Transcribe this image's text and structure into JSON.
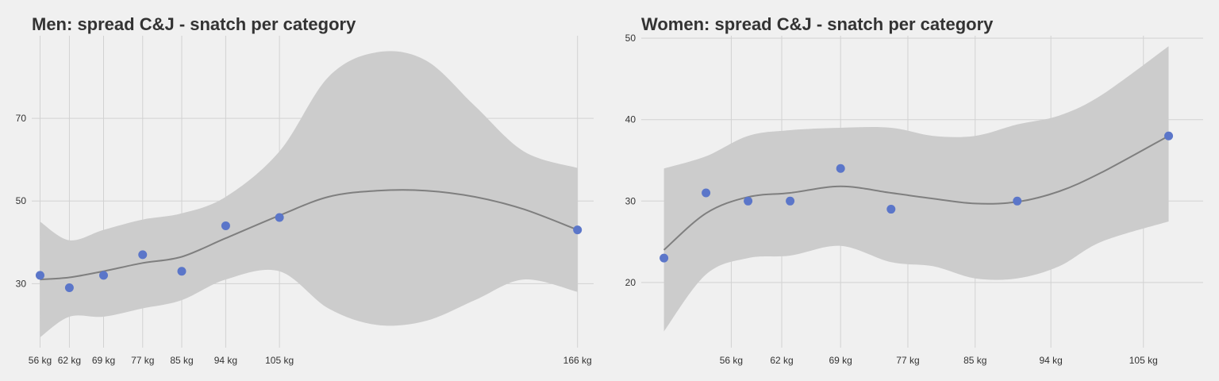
{
  "colors": {
    "background": "#f0f0f0",
    "grid": "#d2d2d2",
    "band": "#cccccc",
    "smooth_line": "#7f7f7f",
    "point": "#5b76c9",
    "text": "#333333"
  },
  "chart_data": [
    {
      "type": "scatter",
      "title": "Men: spread C&J - snatch per category",
      "xlabel": "",
      "ylabel": "",
      "xlim": [
        54.3,
        169.3
      ],
      "ylim": [
        14.5,
        90
      ],
      "x_ticks": [
        56,
        62,
        69,
        77,
        85,
        94,
        105,
        166
      ],
      "x_tick_labels": [
        "56 kg",
        "62 kg",
        "69 kg",
        "77 kg",
        "85 kg",
        "94 kg",
        "105 kg",
        "166 kg"
      ],
      "y_ticks": [
        30,
        50,
        70
      ],
      "y_tick_labels": [
        "30",
        "50",
        "70"
      ],
      "grid": true,
      "legend": "none",
      "points": {
        "x": [
          56,
          62,
          69,
          77,
          85,
          94,
          105,
          166
        ],
        "y": [
          32,
          29,
          32,
          37,
          33,
          44,
          46,
          43
        ]
      },
      "smooth": {
        "x": [
          56,
          62,
          69,
          77,
          85,
          94,
          105,
          115,
          125,
          135,
          145,
          155,
          166
        ],
        "y": [
          31,
          31.5,
          33,
          35,
          36.5,
          41,
          46.5,
          51,
          52.5,
          52.5,
          51,
          48,
          43
        ],
        "lower": [
          17,
          22,
          22,
          24,
          26,
          31,
          33,
          24,
          20,
          21,
          26,
          31,
          28
        ],
        "upper": [
          45,
          40.5,
          43,
          45.5,
          47,
          51,
          62,
          80,
          86,
          84,
          73,
          62,
          58
        ]
      }
    },
    {
      "type": "scatter",
      "title": "Women: spread C&J - snatch per category",
      "xlabel": "",
      "ylabel": "",
      "xlim": [
        45.3,
        112.1
      ],
      "ylim": [
        12,
        50.3
      ],
      "x_ticks": [
        56,
        62,
        69,
        77,
        85,
        94,
        105
      ],
      "x_tick_labels": [
        "56 kg",
        "62 kg",
        "69 kg",
        "77 kg",
        "85 kg",
        "94 kg",
        "105 kg"
      ],
      "y_ticks": [
        20,
        30,
        40,
        50
      ],
      "y_tick_labels": [
        "20",
        "30",
        "40",
        "50"
      ],
      "grid": true,
      "legend": "none",
      "points": {
        "x": [
          48,
          53,
          58,
          63,
          69,
          75,
          90,
          108
        ],
        "y": [
          23,
          31,
          30,
          30,
          34,
          29,
          30,
          38
        ]
      },
      "smooth": {
        "x": [
          48,
          53,
          58,
          63,
          69,
          75,
          80,
          85,
          90,
          95,
          100,
          108
        ],
        "y": [
          24,
          28.5,
          30.5,
          31,
          31.8,
          31,
          30.3,
          29.7,
          29.9,
          31.2,
          33.5,
          38
        ],
        "lower": [
          14,
          21,
          23,
          23.3,
          24.5,
          22.5,
          22,
          20.5,
          20.5,
          22,
          25,
          27.5
        ],
        "upper": [
          34,
          35.5,
          38,
          38.7,
          39,
          39,
          38,
          38,
          39.4,
          40.5,
          43,
          49
        ]
      }
    }
  ]
}
